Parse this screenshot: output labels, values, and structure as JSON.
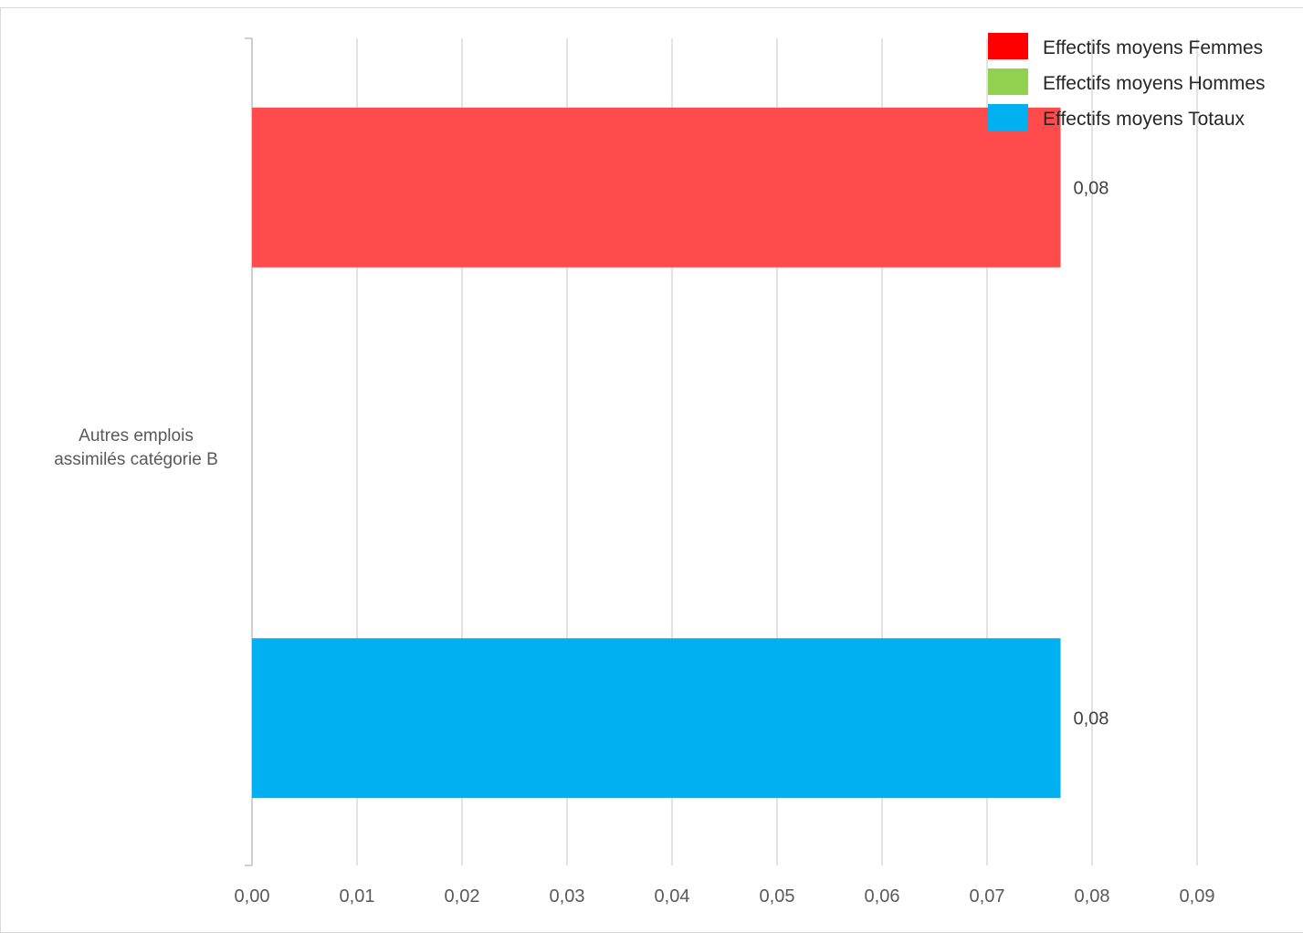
{
  "chart_data": {
    "type": "bar",
    "orientation": "horizontal",
    "categories": [
      "Autres emplois assimilés catégorie B"
    ],
    "category_label_lines": [
      "Autres emplois",
      "assimilés catégorie B"
    ],
    "series": [
      {
        "name": "Effectifs moyens Femmes",
        "values": [
          0.077
        ],
        "labels": [
          "0,08"
        ],
        "color": "#ff0000",
        "bar_color": "#ff4b4b"
      },
      {
        "name": "Effectifs moyens Hommes",
        "values": [
          0
        ],
        "labels": [
          ""
        ],
        "color": "#92d050",
        "bar_color": "#92d050"
      },
      {
        "name": "Effectifs moyens Totaux",
        "values": [
          0.077
        ],
        "labels": [
          "0,08"
        ],
        "color": "#00b0f0",
        "bar_color": "#00b0f0"
      }
    ],
    "xlim": [
      0,
      0.09
    ],
    "x_ticks": [
      0,
      0.01,
      0.02,
      0.03,
      0.04,
      0.05,
      0.06,
      0.07,
      0.08,
      0.09
    ],
    "x_tick_labels": [
      "0,00",
      "0,01",
      "0,02",
      "0,03",
      "0,04",
      "0,05",
      "0,06",
      "0,07",
      "0,08",
      "0,09"
    ],
    "title": "",
    "xlabel": "",
    "ylabel": "",
    "grid": true,
    "grid_color": "#d9d9d9",
    "legend_position": "top-right"
  }
}
